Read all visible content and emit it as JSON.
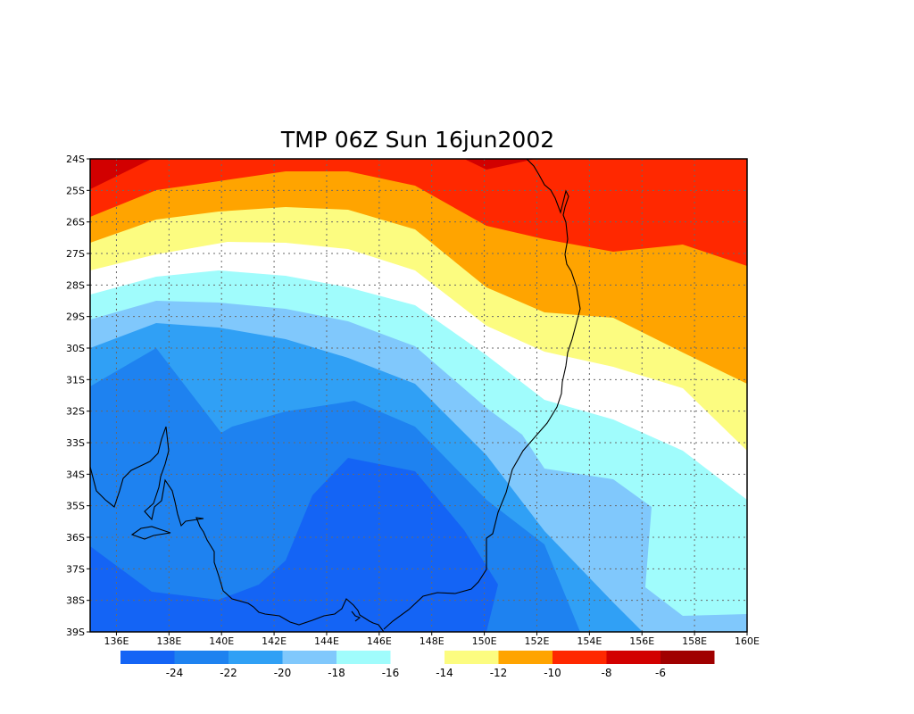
{
  "title": "TMP 06Z Sun 16jun2002",
  "map": {
    "lon_range": [
      135,
      160
    ],
    "lat_range": [
      -39,
      -24
    ],
    "lon_ticks": [
      "136E",
      "138E",
      "140E",
      "142E",
      "144E",
      "146E",
      "148E",
      "150E",
      "152E",
      "154E",
      "156E",
      "158E",
      "160E"
    ],
    "lat_ticks": [
      "24S",
      "25S",
      "26S",
      "27S",
      "28S",
      "29S",
      "30S",
      "31S",
      "32S",
      "33S",
      "34S",
      "35S",
      "36S",
      "37S",
      "38S",
      "39S"
    ],
    "grid": "dotted",
    "field": "temperature (contour bands)"
  },
  "legend": {
    "left_labels": [
      "-24",
      "-22",
      "-20",
      "-18",
      "-16"
    ],
    "right_labels": [
      "-14",
      "-12",
      "-10",
      "-8",
      "-6"
    ],
    "cold_colors": [
      "#1464f5",
      "#1e82f0",
      "#30a0f5",
      "#80c8fc",
      "#a0fcfc"
    ],
    "warm_colors": [
      "#fcfc80",
      "#ffa400",
      "#ff2800",
      "#d20000",
      "#a00000"
    ]
  },
  "colors": {
    "lt_minus24": "#1464f5",
    "b_24_22": "#1e82f0",
    "b_22_20": "#30a0f5",
    "b_20_18": "#80c8fc",
    "b_18_16": "#a0fcfc",
    "b_16_14": "#ffffff",
    "b_14_12": "#fcfc80",
    "b_12_10": "#ffa400",
    "b_10_8": "#ff2800",
    "b_8_6": "#d20000"
  }
}
